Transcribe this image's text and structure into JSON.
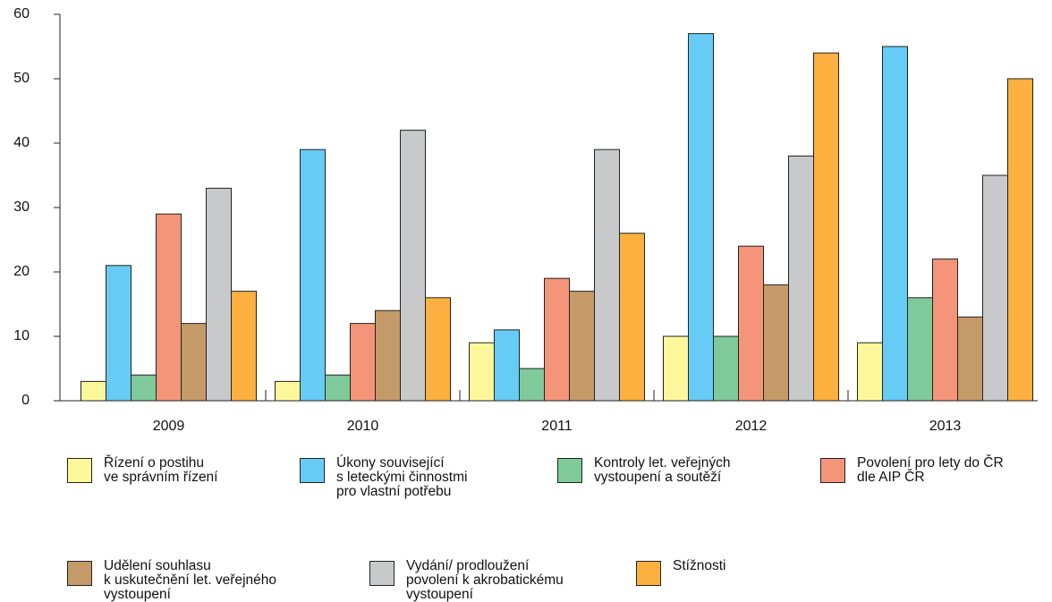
{
  "chart_data": {
    "type": "bar",
    "categories": [
      "2009",
      "2010",
      "2011",
      "2012",
      "2013"
    ],
    "series": [
      {
        "name": "Řízení o postihu\nve správním řízení",
        "color": "#fdf79b",
        "values": [
          3,
          3,
          9,
          10,
          9
        ]
      },
      {
        "name": "Úkony související\ns leteckými činnostmi\npro vlastní potřebu",
        "color": "#66ccf5",
        "values": [
          21,
          39,
          11,
          57,
          55
        ]
      },
      {
        "name": "Kontroly let. veřejných\nvystoupení a soutěží",
        "color": "#7fc99a",
        "values": [
          4,
          4,
          5,
          10,
          16
        ]
      },
      {
        "name": "Povolení pro lety do ČR\ndle AIP ČR",
        "color": "#f4957a",
        "values": [
          29,
          12,
          19,
          24,
          22
        ]
      },
      {
        "name": "Udělení souhlasu\nk uskutečnění let. veřejného\nvystoupení",
        "color": "#c49a68",
        "values": [
          12,
          14,
          17,
          18,
          13
        ]
      },
      {
        "name": "Vydání/ prodloužení\npovolení k akrobatickému\nvystoupení",
        "color": "#c8c9cb",
        "values": [
          33,
          42,
          39,
          38,
          35
        ]
      },
      {
        "name": "Stížnosti",
        "color": "#fbb040",
        "values": [
          17,
          16,
          26,
          54,
          50
        ]
      }
    ],
    "ylim": [
      0,
      60
    ],
    "yticks": [
      0,
      10,
      20,
      30,
      40,
      50,
      60
    ]
  }
}
